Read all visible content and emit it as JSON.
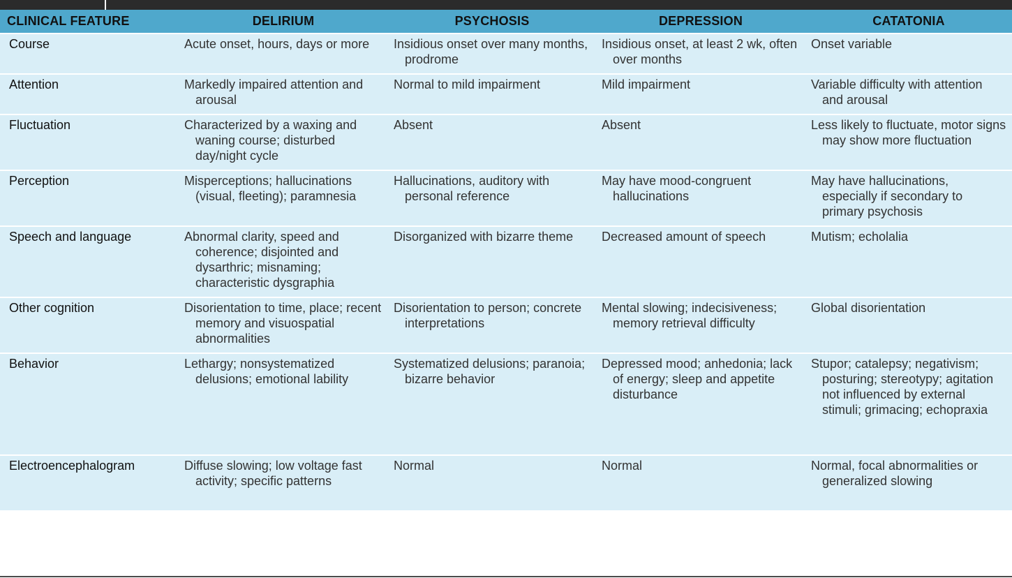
{
  "headers": [
    "CLINICAL FEATURE",
    "DELIRIUM",
    "PSYCHOSIS",
    "DEPRESSION",
    "CATATONIA"
  ],
  "rows": [
    {
      "feature": "Course",
      "delirium": "Acute onset, hours, days or more",
      "psychosis": "Insidious onset over many months, prodrome",
      "depression": "Insidious onset, at least 2 wk, often over months",
      "catatonia": "Onset variable"
    },
    {
      "feature": "Attention",
      "delirium": "Markedly impaired attention and arousal",
      "psychosis": "Normal to mild impairment",
      "depression": "Mild impairment",
      "catatonia": "Variable difficulty with attention and arousal"
    },
    {
      "feature": "Fluctuation",
      "delirium": "Characterized by a waxing and waning course; disturbed day/night cycle",
      "psychosis": "Absent",
      "depression": "Absent",
      "catatonia": "Less likely to fluctuate, motor signs may show more fluctuation"
    },
    {
      "feature": "Perception",
      "delirium": "Misperceptions; hallucinations (visual, fleeting); paramnesia",
      "psychosis": "Hallucinations, auditory with personal reference",
      "depression": "May have mood-congruent hallucinations",
      "catatonia": "May have hallucinations, especially if secondary to primary psychosis"
    },
    {
      "feature": "Speech and language",
      "delirium": "Abnormal clarity, speed and coherence; disjointed and dysarthric; misnaming; characteristic dysgraphia",
      "psychosis": "Disorganized with bizarre theme",
      "depression": "Decreased amount of speech",
      "catatonia": "Mutism; echolalia"
    },
    {
      "feature": "Other cognition",
      "delirium": "Disorientation to time, place; recent memory and visuospatial abnormalities",
      "psychosis": "Disorientation to person; concrete interpretations",
      "depression": "Mental slowing; indecisiveness; memory retrieval difficulty",
      "catatonia": "Global disorientation"
    },
    {
      "feature": "Behavior",
      "delirium": "Lethargy; nonsystematized delusions; emotional lability",
      "psychosis": "Systematized delusions; paranoia; bizarre behavior",
      "depression": "Depressed mood; anhedonia; lack of energy; sleep and appetite disturbance",
      "catatonia": "Stupor; catalepsy; negativism; posturing; stereotypy; agitation not influenced by external stimuli; grimacing; echopraxia"
    },
    {
      "feature": "Electroencephalogram",
      "delirium": "Diffuse slowing; low voltage fast activity; specific patterns",
      "psychosis": "Normal",
      "depression": "Normal",
      "catatonia": "Normal, focal abnormalities or generalized slowing"
    }
  ],
  "colors": {
    "header_bg": "#4fa8cc",
    "row_bg": "#d9eef7",
    "top_rule": "#2b2b2b"
  }
}
